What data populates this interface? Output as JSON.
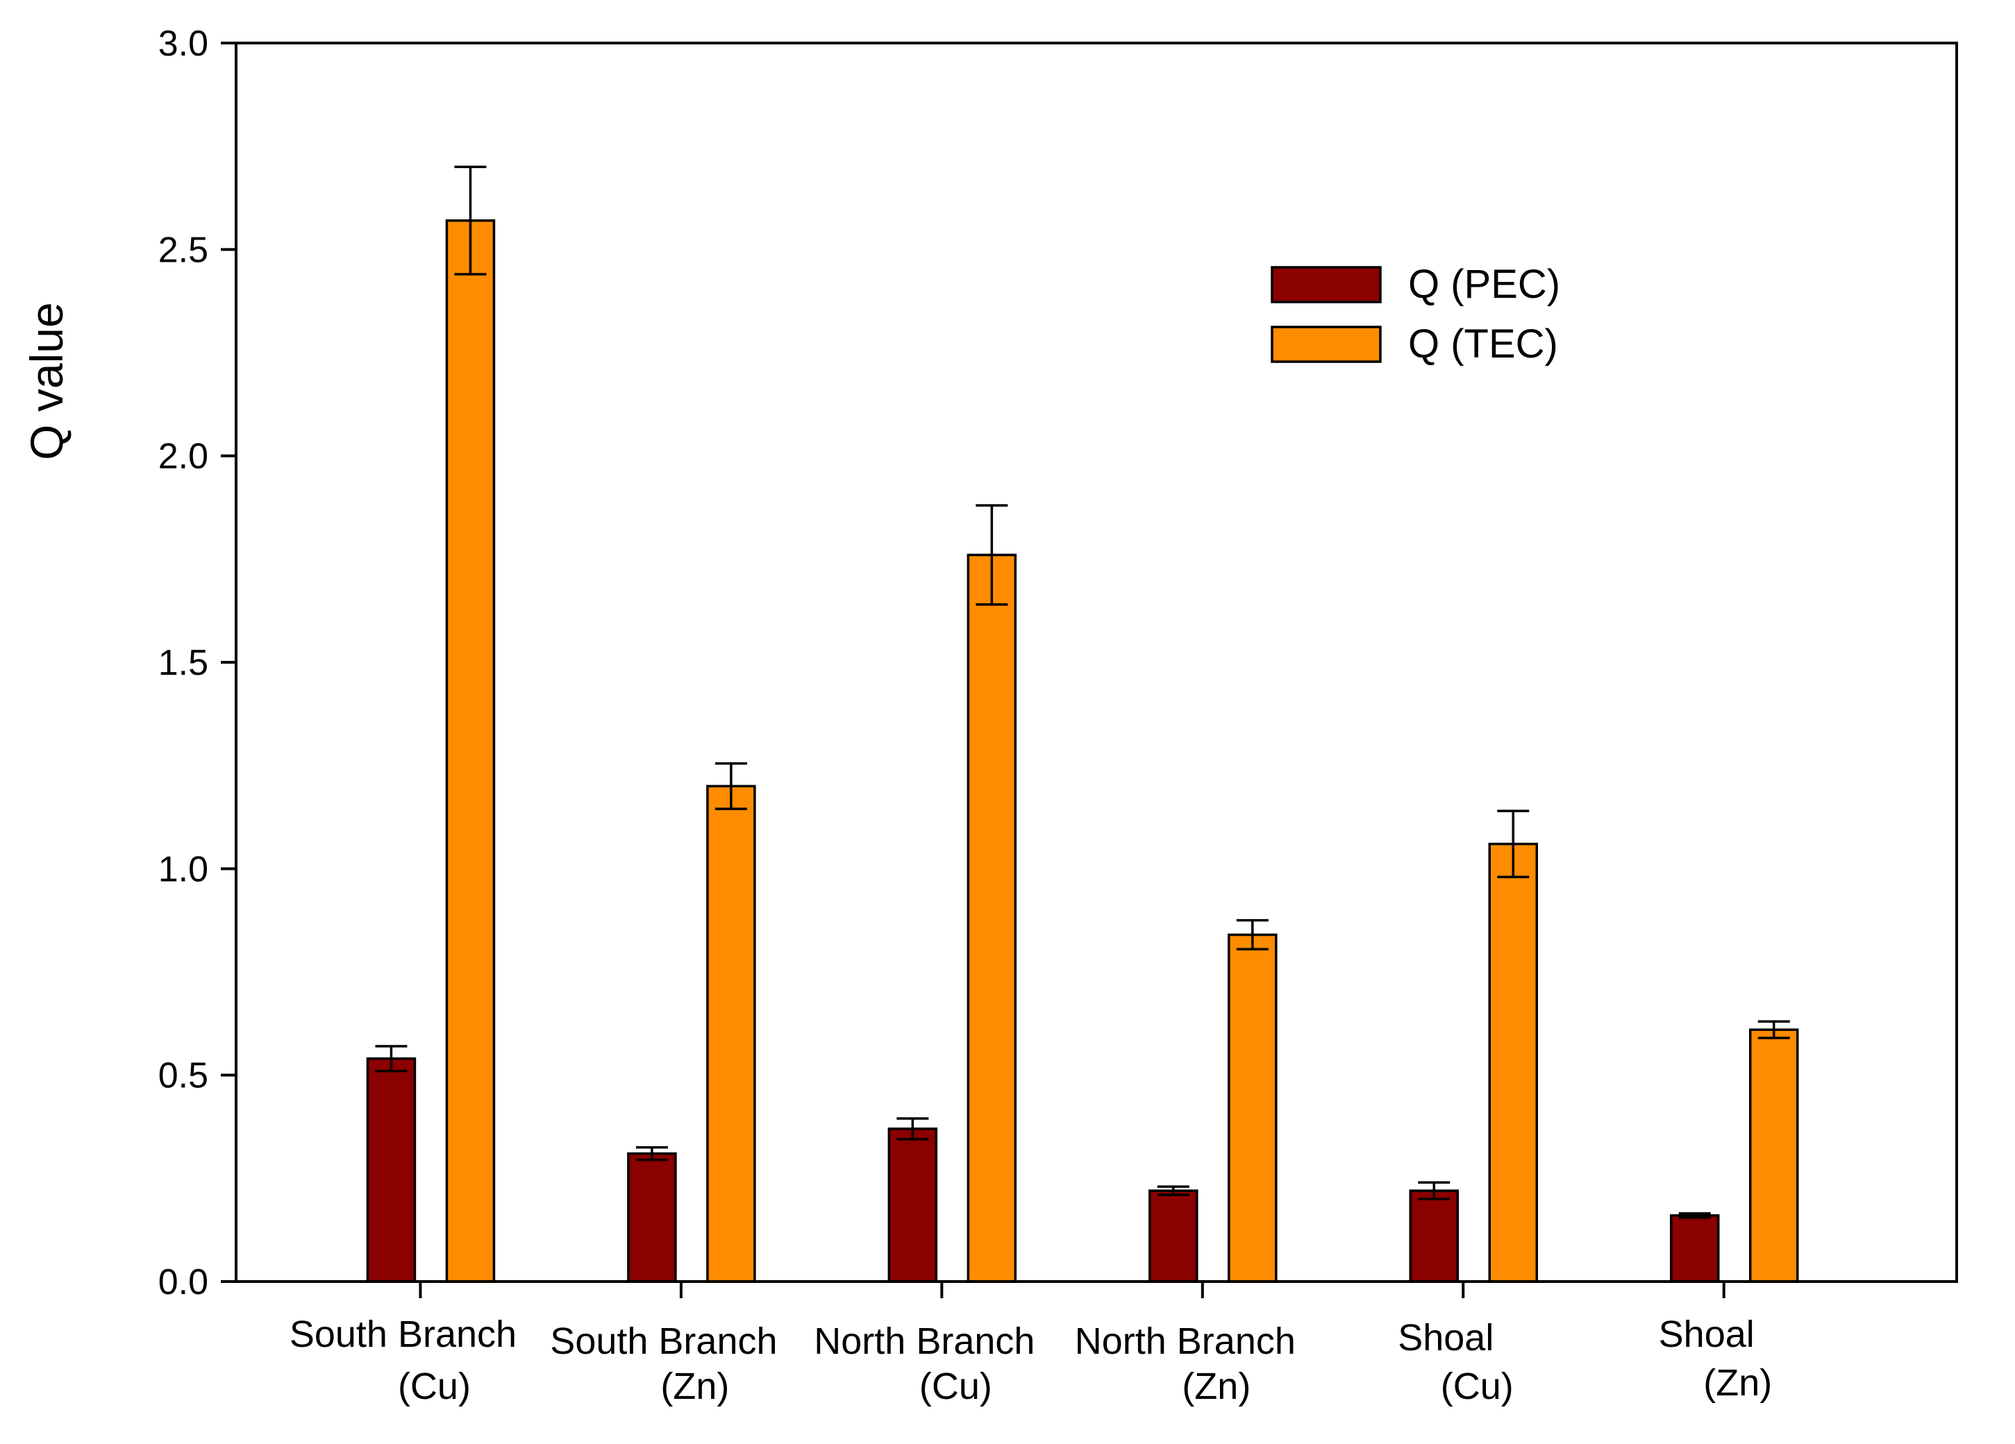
{
  "chart_data": {
    "type": "bar",
    "title": "",
    "xlabel": "",
    "ylabel": "Q value",
    "ylim": [
      0,
      3.0
    ],
    "yticks": [
      "0.0",
      "0.5",
      "1.0",
      "1.5",
      "2.0",
      "2.5",
      "3.0"
    ],
    "grid": false,
    "legend_position": "top-right",
    "categories": [
      {
        "line1": "South Branch",
        "line2": "(Cu)"
      },
      {
        "line1": "South Branch",
        "line2": "(Zn)"
      },
      {
        "line1": "North Branch",
        "line2": "(Cu)"
      },
      {
        "line1": "North Branch",
        "line2": "(Zn)"
      },
      {
        "line1": "Shoal",
        "line2": "(Cu)"
      },
      {
        "line1": "Shoal",
        "line2": "(Zn)"
      }
    ],
    "series": [
      {
        "name": "Q (PEC)",
        "color": "#8B0000",
        "values": [
          0.54,
          0.31,
          0.37,
          0.22,
          0.22,
          0.16
        ],
        "errors": [
          0.03,
          0.015,
          0.025,
          0.01,
          0.02,
          0.005
        ]
      },
      {
        "name": "Q (TEC)",
        "color": "#FF8C00",
        "values": [
          2.57,
          1.2,
          1.76,
          0.84,
          1.06,
          0.61
        ],
        "errors": [
          0.13,
          0.055,
          0.12,
          0.035,
          0.08,
          0.02
        ]
      }
    ]
  }
}
